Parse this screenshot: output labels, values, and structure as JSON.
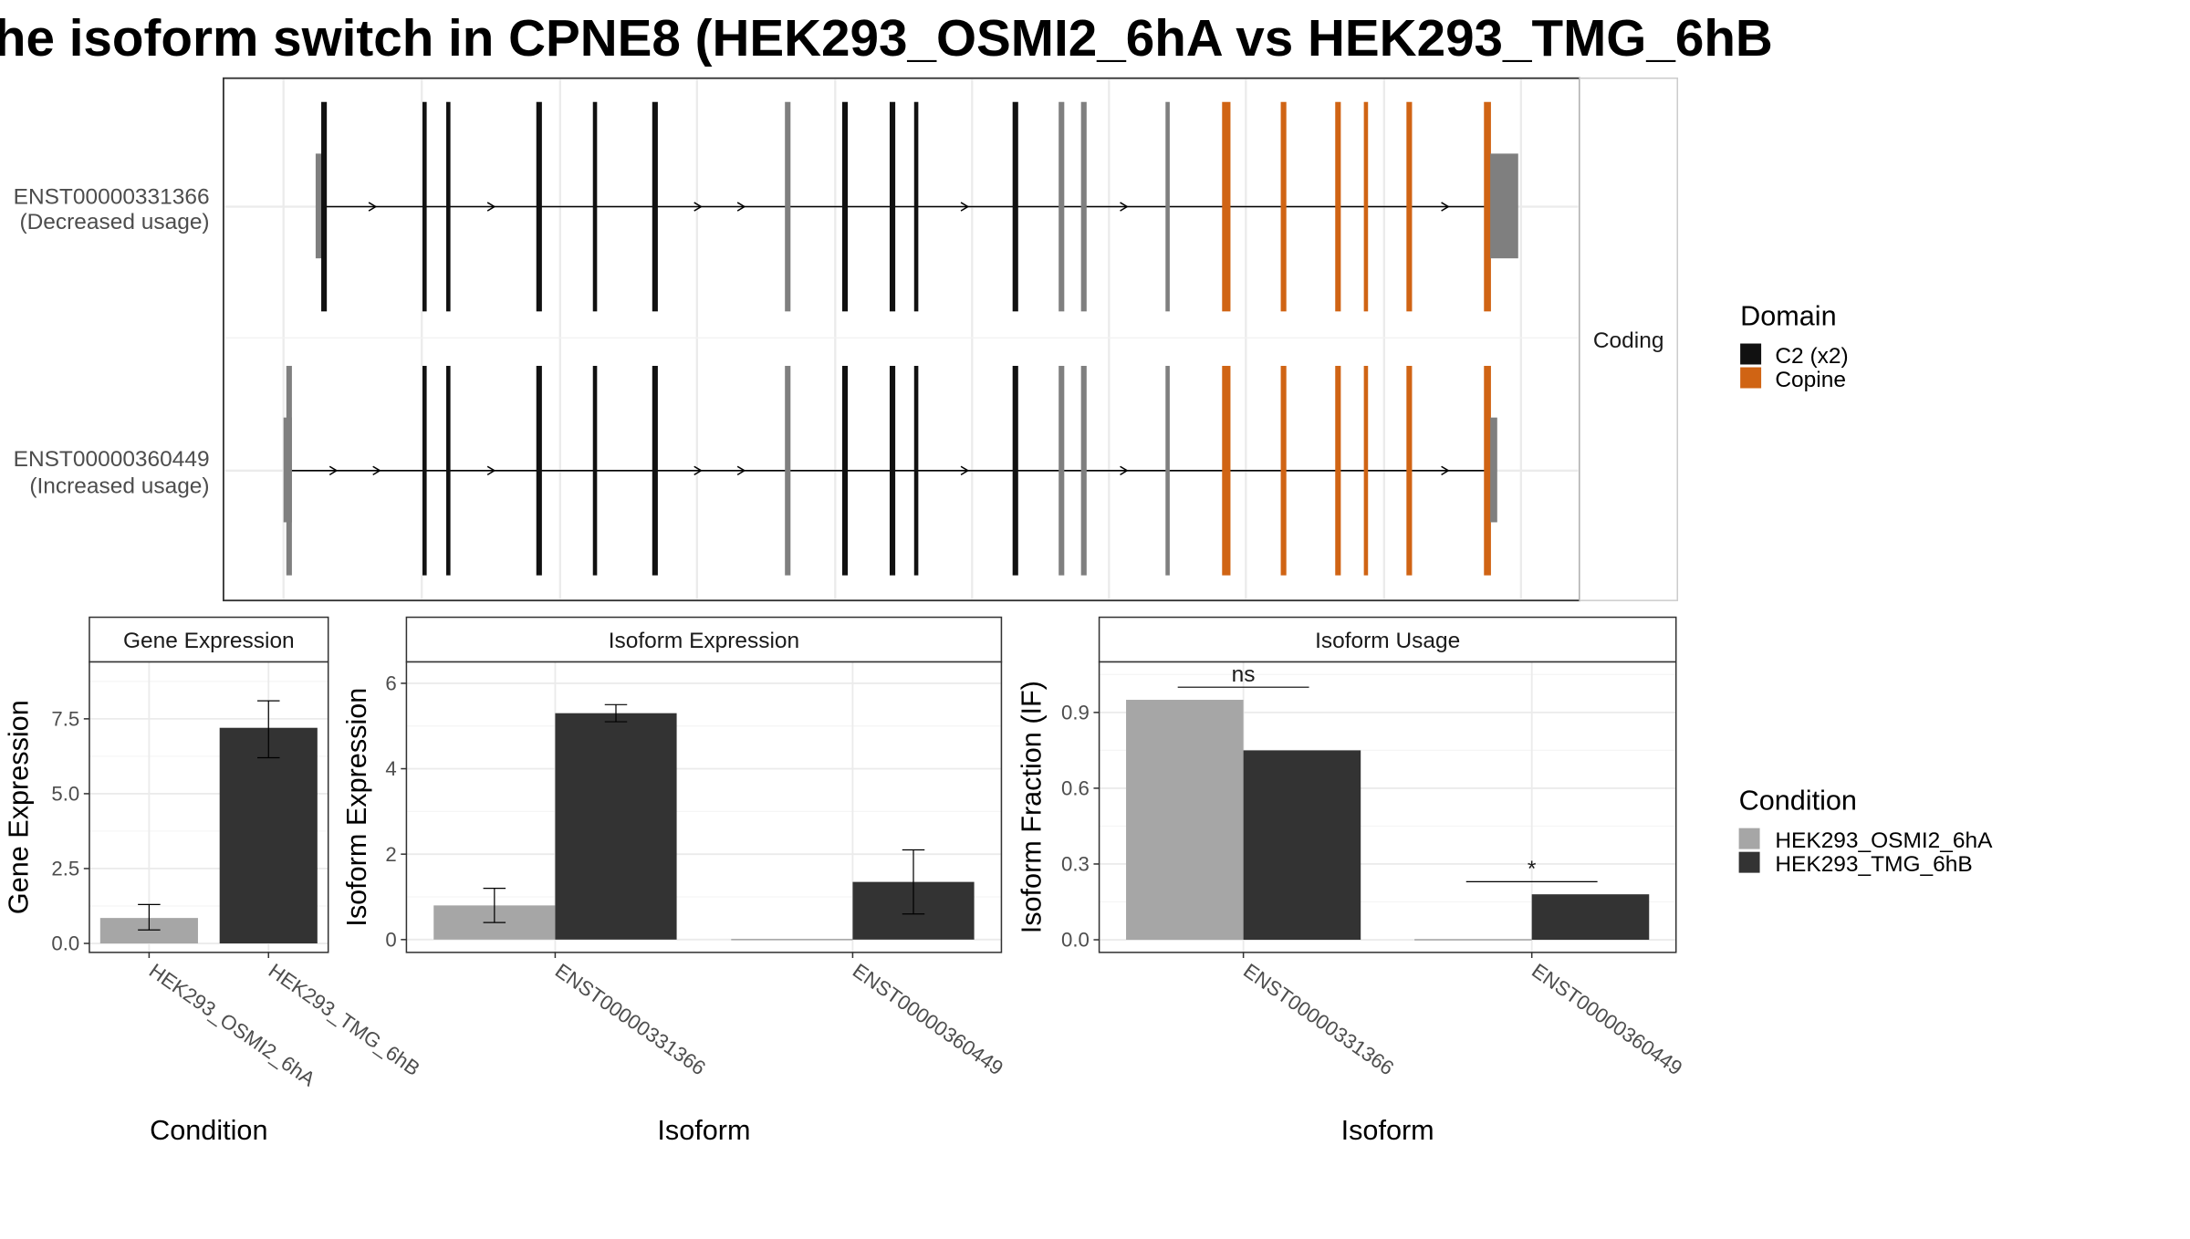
{
  "title": "he isoform switch in CPNE8 (HEK293_OSMI2_6hA vs HEK293_TMG_6hB",
  "colors": {
    "osmi": "#a6a6a6",
    "tmg": "#333333",
    "c2": "#111111",
    "copine": "#d06414",
    "noncoding_exon": "#7f7f7f",
    "grid": "#ebebeb"
  },
  "transcript_panel": {
    "strip_label": "Coding",
    "transcripts": [
      {
        "id": "ENST00000331366",
        "usage": "(Decreased usage)"
      },
      {
        "id": "ENST00000360449",
        "usage": "(Increased usage)"
      }
    ],
    "domain_legend": {
      "title": "Domain",
      "items": [
        {
          "label": "C2 (x2)",
          "color": "#111111"
        },
        {
          "label": "Copine",
          "color": "#d06414"
        }
      ]
    }
  },
  "condition_legend": {
    "title": "Condition",
    "items": [
      {
        "label": "HEK293_OSMI2_6hA",
        "color": "#a6a6a6"
      },
      {
        "label": "HEK293_TMG_6hB",
        "color": "#333333"
      }
    ]
  },
  "chart_data": [
    {
      "type": "bar",
      "title": "Gene Expression",
      "xlabel": "Condition",
      "ylabel": "Gene Expression",
      "ylim": [
        -0.3,
        9.4
      ],
      "yticks": [
        0.0,
        2.5,
        5.0,
        7.5
      ],
      "ytick_labels": [
        "0.0",
        "2.5",
        "5.0",
        "7.5"
      ],
      "categories": [
        "HEK293_OSMI2_6hA",
        "HEK293_TMG_6hB"
      ],
      "series": [
        {
          "name": "HEK293_OSMI2_6hA",
          "values": [
            0.85,
            null
          ],
          "err_low": [
            0.45,
            null
          ],
          "err_high": [
            1.3,
            null
          ]
        },
        {
          "name": "HEK293_TMG_6hB",
          "values": [
            null,
            7.2
          ],
          "err_low": [
            null,
            6.2
          ],
          "err_high": [
            null,
            8.1
          ]
        }
      ]
    },
    {
      "type": "bar",
      "title": "Isoform Expression",
      "xlabel": "Isoform",
      "ylabel": "Isoform Expression",
      "ylim": [
        -0.3,
        6.5
      ],
      "yticks": [
        0,
        2,
        4,
        6
      ],
      "ytick_labels": [
        "0",
        "2",
        "4",
        "6"
      ],
      "categories": [
        "ENST00000331366",
        "ENST00000360449"
      ],
      "series": [
        {
          "name": "HEK293_OSMI2_6hA",
          "values": [
            0.8,
            0.0
          ],
          "err_low": [
            0.4,
            0.0
          ],
          "err_high": [
            1.2,
            0.0
          ]
        },
        {
          "name": "HEK293_TMG_6hB",
          "values": [
            5.3,
            1.35
          ],
          "err_low": [
            5.1,
            0.6
          ],
          "err_high": [
            5.5,
            2.1
          ]
        }
      ]
    },
    {
      "type": "bar",
      "title": "Isoform Usage",
      "xlabel": "Isoform",
      "ylabel": "Isoform Fraction (IF)",
      "ylim": [
        -0.05,
        1.1
      ],
      "yticks": [
        0.0,
        0.3,
        0.6,
        0.9
      ],
      "ytick_labels": [
        "0.0",
        "0.3",
        "0.6",
        "0.9"
      ],
      "categories": [
        "ENST00000331366",
        "ENST00000360449"
      ],
      "series": [
        {
          "name": "HEK293_OSMI2_6hA",
          "values": [
            0.95,
            0.0
          ]
        },
        {
          "name": "HEK293_TMG_6hB",
          "values": [
            0.75,
            0.18
          ]
        }
      ],
      "annotations": [
        {
          "category": "ENST00000331366",
          "y": 1.0,
          "text": "ns"
        },
        {
          "category": "ENST00000360449",
          "y": 0.23,
          "text": "*"
        }
      ]
    }
  ]
}
